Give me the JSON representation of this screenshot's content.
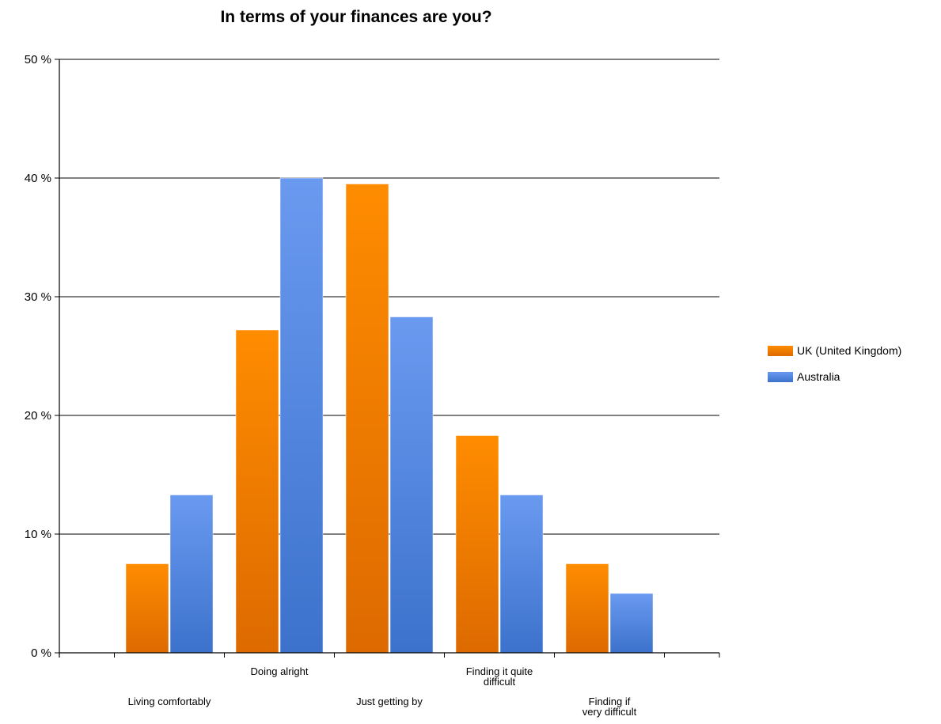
{
  "chart_data": {
    "type": "bar",
    "title": "In terms of your finances are you?",
    "xlabel": "",
    "ylabel": "",
    "ylim": [
      0,
      50
    ],
    "yticks": [
      0,
      10,
      20,
      30,
      40,
      50
    ],
    "ytick_labels": [
      "0 %",
      "10 %",
      "20 %",
      "30 %",
      "40 %",
      "50 %"
    ],
    "categories": [
      [
        "Living comfortably"
      ],
      [
        "Doing alright"
      ],
      [
        "Just getting by"
      ],
      [
        "Finding it quite",
        "difficult"
      ],
      [
        "Finding if",
        "very difficult"
      ]
    ],
    "series": [
      {
        "name": "UK (United Kingdom)",
        "color": "#f08000",
        "values": [
          7.5,
          27.2,
          39.5,
          18.3,
          7.5
        ]
      },
      {
        "name": "Australia",
        "color": "#4a7fd8",
        "values": [
          13.3,
          40.0,
          28.3,
          13.3,
          5.0
        ]
      }
    ],
    "grid": true,
    "legend_position": "right"
  }
}
